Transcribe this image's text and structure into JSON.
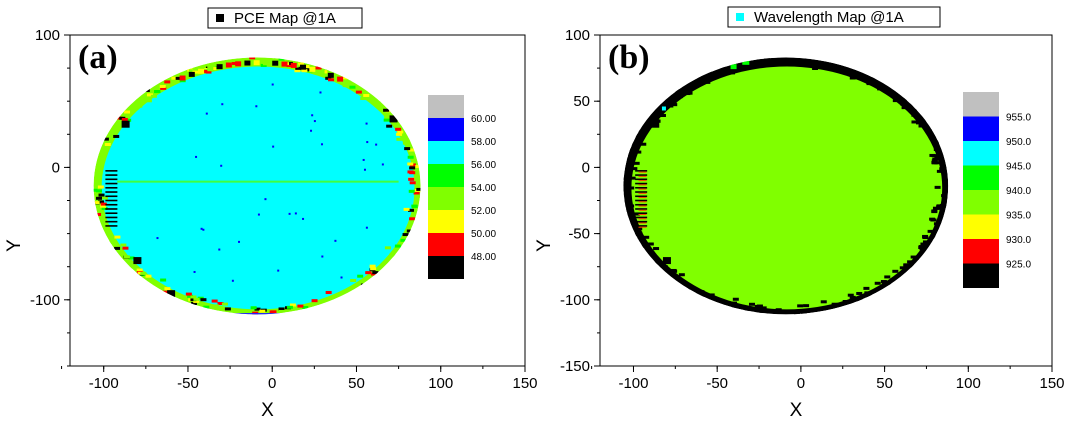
{
  "chart_data": [
    {
      "type": "heatmap",
      "panel_label": "(a)",
      "legend_label": "PCE Map @1A",
      "legend_marker_color": "#000000",
      "xlabel": "X",
      "ylabel": "Y",
      "xlim": [
        -120,
        150
      ],
      "ylim": [
        -150,
        100
      ],
      "x_ticks": [
        "-100",
        "-50",
        "0",
        "50",
        "100",
        "150"
      ],
      "y_ticks": [
        "100",
        "0",
        "-100"
      ],
      "y_tick_values": [
        100,
        0,
        -100
      ],
      "colorbar": {
        "labels": [
          "60.00",
          "58.00",
          "56.00",
          "54.00",
          "52.00",
          "50.00",
          "48.00"
        ],
        "colors": [
          "#c0c0c0",
          "#0000ff",
          "#00ffff",
          "#00ff00",
          "#80ff00",
          "#ffff00",
          "#ff0000",
          "#000000"
        ]
      },
      "wafer": {
        "center": [
          -9,
          -14
        ],
        "radius": 97,
        "flat_y": -112
      },
      "dominant_color": "#00ffff",
      "edge_colors": [
        "#80ff00",
        "#00ff00",
        "#ffff00",
        "#ff0000",
        "#000000"
      ]
    },
    {
      "type": "heatmap",
      "panel_label": "(b)",
      "legend_label": "Wavelength Map @1A",
      "legend_marker_color": "#00ffff",
      "xlabel": "X",
      "ylabel": "Y",
      "xlim": [
        -120,
        150
      ],
      "ylim": [
        -150,
        100
      ],
      "x_ticks": [
        "-100",
        "-50",
        "0",
        "50",
        "100",
        "150"
      ],
      "y_ticks": [
        "100",
        "50",
        "0",
        "-50",
        "-100",
        "-150"
      ],
      "y_tick_values": [
        100,
        50,
        0,
        -50,
        -100,
        -150
      ],
      "colorbar": {
        "labels": [
          "955.0",
          "950.0",
          "945.0",
          "940.0",
          "935.0",
          "930.0",
          "925.0"
        ],
        "colors": [
          "#c0c0c0",
          "#0000ff",
          "#00ffff",
          "#00ff00",
          "#80ff00",
          "#ffff00",
          "#ff0000",
          "#000000"
        ]
      },
      "wafer": {
        "center": [
          -9,
          -14
        ],
        "radius": 97,
        "flat_y": -112
      },
      "dominant_color": "#80ff00",
      "edge_colors": [
        "#000000"
      ]
    }
  ]
}
